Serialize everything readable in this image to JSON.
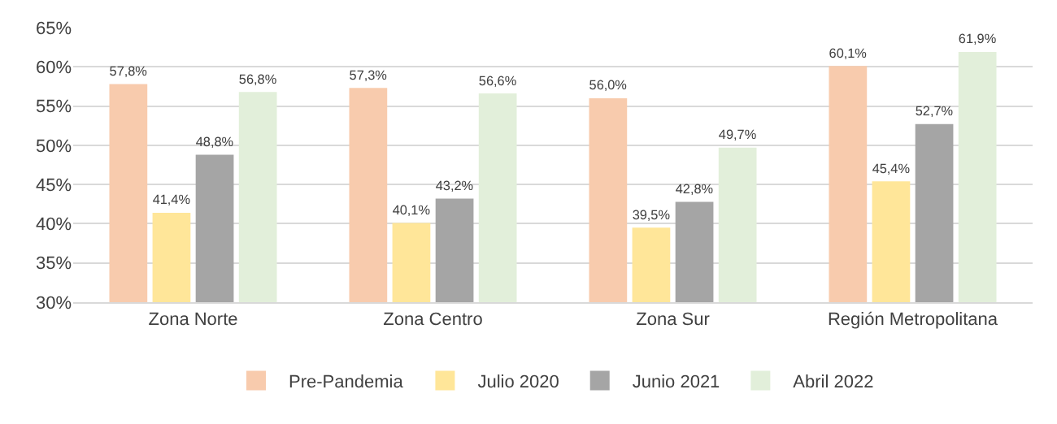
{
  "chart_data": {
    "type": "bar",
    "categories": [
      "Zona Norte",
      "Zona Centro",
      "Zona Sur",
      "Región Metropolitana"
    ],
    "series": [
      {
        "name": "Pre-Pandemia",
        "color": "#f8cbad",
        "values": [
          57.8,
          57.3,
          56.0,
          60.1
        ],
        "value_labels": [
          "57,8%",
          "57,3%",
          "56,0%",
          "60,1%"
        ]
      },
      {
        "name": "Julio 2020",
        "color": "#ffe699",
        "values": [
          41.4,
          40.1,
          39.5,
          45.4
        ],
        "value_labels": [
          "41,4%",
          "40,1%",
          "39,5%",
          "45,4%"
        ]
      },
      {
        "name": "Junio 2021",
        "color": "#a5a5a5",
        "values": [
          48.8,
          43.2,
          42.8,
          52.7
        ],
        "value_labels": [
          "48,8%",
          "43,2%",
          "42,8%",
          "52,7%"
        ]
      },
      {
        "name": "Abril 2022",
        "color": "#e2efda",
        "values": [
          56.8,
          56.6,
          49.7,
          61.9
        ],
        "value_labels": [
          "56,8%",
          "56,6%",
          "49,7%",
          "61,9%"
        ]
      }
    ],
    "ylim": [
      30,
      65
    ],
    "yticks": [
      {
        "value": 30,
        "label": "30%"
      },
      {
        "value": 35,
        "label": "35%"
      },
      {
        "value": 40,
        "label": "40%"
      },
      {
        "value": 45,
        "label": "45%"
      },
      {
        "value": 50,
        "label": "50%"
      },
      {
        "value": 55,
        "label": "55%"
      },
      {
        "value": 60,
        "label": "60%"
      },
      {
        "value": 65,
        "label": "65%"
      }
    ],
    "grid": "y",
    "legend": "bottom"
  }
}
